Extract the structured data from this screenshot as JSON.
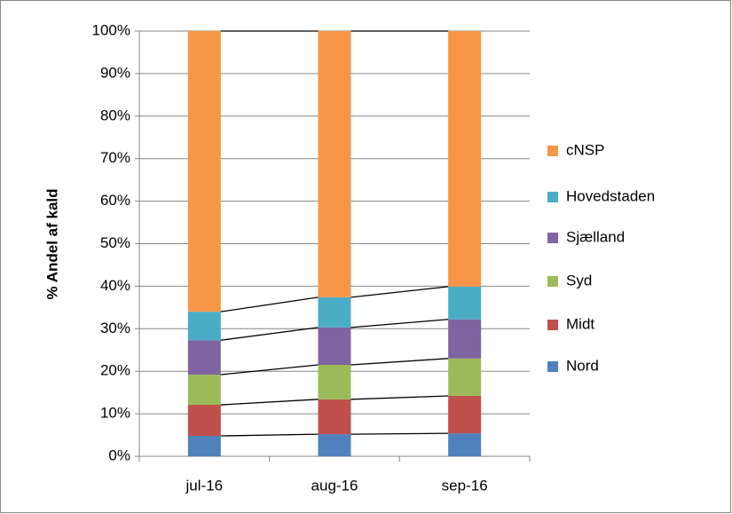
{
  "chart_data": {
    "type": "stacked-bar-100",
    "y_label": "% Andel af kald",
    "categories": [
      "jul-16",
      "aug-16",
      "sep-16"
    ],
    "series": [
      {
        "name": "Nord",
        "color": "#4f81bd",
        "values": [
          4.8,
          5.2,
          5.4
        ]
      },
      {
        "name": "Midt",
        "color": "#c0504d",
        "values": [
          7.3,
          8.2,
          8.8
        ]
      },
      {
        "name": "Syd",
        "color": "#9bbb59",
        "values": [
          7.1,
          8.1,
          8.8
        ]
      },
      {
        "name": "Sjælland",
        "color": "#8064a2",
        "values": [
          8.1,
          8.8,
          9.2
        ]
      },
      {
        "name": "Hovedstaden",
        "color": "#4bacc6",
        "values": [
          6.7,
          7.1,
          7.7
        ]
      },
      {
        "name": "cNSP",
        "color": "#f79646",
        "values": [
          66.0,
          62.6,
          60.1
        ]
      }
    ],
    "ylim": [
      0,
      100
    ],
    "yticks": [
      {
        "value": 0,
        "label": "0%"
      },
      {
        "value": 10,
        "label": "10%"
      },
      {
        "value": 20,
        "label": "20%"
      },
      {
        "value": 30,
        "label": "30%"
      },
      {
        "value": 40,
        "label": "40%"
      },
      {
        "value": 50,
        "label": "50%"
      },
      {
        "value": 60,
        "label": "60%"
      },
      {
        "value": 70,
        "label": "70%"
      },
      {
        "value": 80,
        "label": "80%"
      },
      {
        "value": 90,
        "label": "90%"
      },
      {
        "value": 100,
        "label": "100%"
      }
    ],
    "grid": true,
    "legend": "right"
  }
}
